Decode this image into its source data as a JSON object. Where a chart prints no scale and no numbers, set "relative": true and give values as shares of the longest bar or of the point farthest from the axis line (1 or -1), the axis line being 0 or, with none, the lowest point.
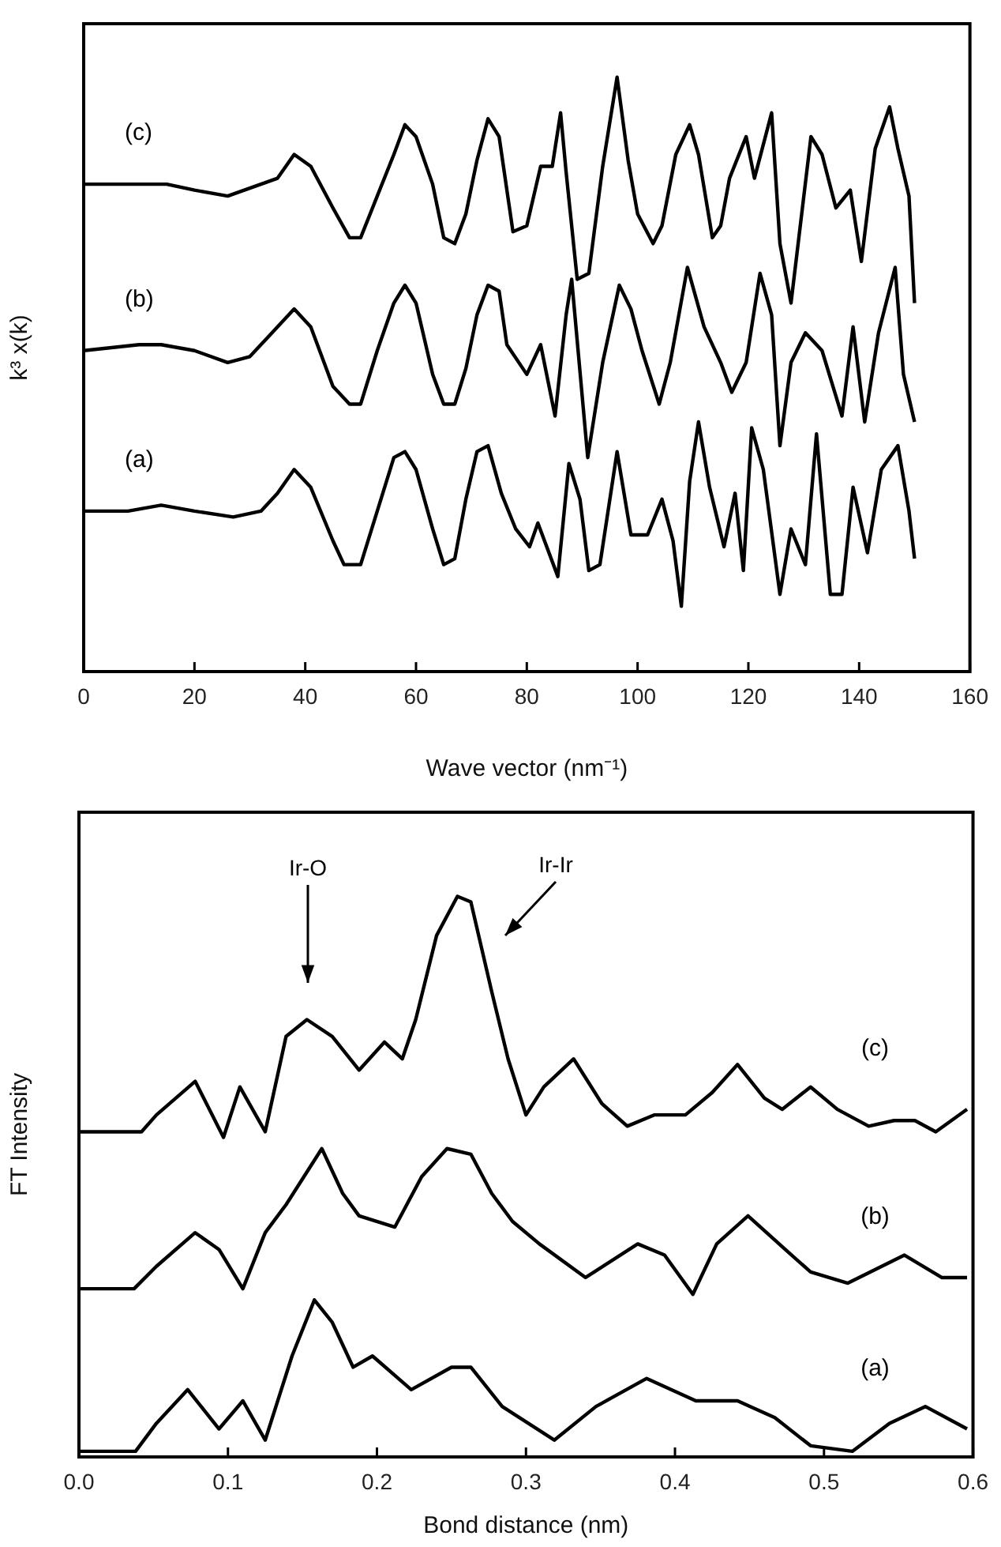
{
  "chart_data": [
    {
      "type": "line",
      "xlabel": "Wave vector (nm⁻¹)",
      "ylabel": "k³ x(k)",
      "relative": true,
      "xlim": [
        0,
        160
      ],
      "xticks": [
        0,
        20,
        40,
        60,
        80,
        100,
        120,
        140,
        160
      ],
      "tick_labels": "x",
      "series": [
        {
          "name": "(c)",
          "color": "#000000",
          "x": [
            0,
            10,
            15,
            20,
            26,
            32,
            35,
            38,
            41,
            45,
            48,
            50,
            53,
            56,
            58,
            60,
            63,
            65,
            67,
            69,
            71,
            73,
            75,
            77.5,
            80,
            82.5,
            84.6,
            86.1,
            87.1,
            89.1,
            91.2,
            93.7,
            96.3,
            98.3,
            100,
            102.8,
            104.4,
            106.9,
            109.4,
            111,
            113.5,
            115,
            116.6,
            119.6,
            121.1,
            124.2,
            125.7,
            127.7,
            131.3,
            133.3,
            135.8,
            138.4,
            140.4,
            142.9,
            145.5,
            147,
            149,
            150
          ],
          "values": [
            0.82,
            0.82,
            0.82,
            0.81,
            0.8,
            0.82,
            0.83,
            0.87,
            0.85,
            0.78,
            0.73,
            0.73,
            0.8,
            0.87,
            0.92,
            0.9,
            0.82,
            0.73,
            0.72,
            0.77,
            0.86,
            0.93,
            0.9,
            0.74,
            0.75,
            0.85,
            0.85,
            0.94,
            0.84,
            0.66,
            0.67,
            0.85,
            1,
            0.86,
            0.77,
            0.72,
            0.75,
            0.87,
            0.92,
            0.87,
            0.73,
            0.75,
            0.83,
            0.9,
            0.83,
            0.94,
            0.72,
            0.62,
            0.9,
            0.87,
            0.78,
            0.81,
            0.69,
            0.88,
            0.95,
            0.88,
            0.8,
            0.62
          ]
        },
        {
          "name": "(b)",
          "color": "#000000",
          "x": [
            0,
            10,
            14,
            20,
            26,
            30,
            34,
            38,
            41,
            45,
            48,
            50,
            53,
            56,
            58,
            60,
            63,
            65,
            67,
            69,
            71,
            73,
            75,
            76.4,
            80,
            82.5,
            85.1,
            87.1,
            88.1,
            91,
            93.7,
            96.7,
            98.8,
            100.8,
            103.9,
            105.9,
            109,
            112,
            115,
            117,
            119.6,
            122.1,
            124.2,
            125.7,
            127.7,
            130.3,
            133.3,
            136.9,
            138.9,
            141,
            143.5,
            146.5,
            148,
            150
          ],
          "values": [
            0.54,
            0.55,
            0.55,
            0.54,
            0.52,
            0.53,
            0.57,
            0.61,
            0.58,
            0.48,
            0.45,
            0.45,
            0.54,
            0.62,
            0.65,
            0.62,
            0.5,
            0.45,
            0.45,
            0.51,
            0.6,
            0.65,
            0.64,
            0.55,
            0.5,
            0.55,
            0.43,
            0.6,
            0.66,
            0.36,
            0.52,
            0.65,
            0.61,
            0.54,
            0.45,
            0.52,
            0.68,
            0.58,
            0.52,
            0.47,
            0.52,
            0.67,
            0.6,
            0.38,
            0.52,
            0.57,
            0.54,
            0.43,
            0.58,
            0.42,
            0.57,
            0.68,
            0.5,
            0.42
          ]
        },
        {
          "name": "(a)",
          "color": "#000000",
          "x": [
            0,
            8,
            14,
            20,
            27,
            32,
            35,
            38,
            41,
            45,
            47,
            50,
            53,
            56,
            58,
            60,
            63,
            65,
            67,
            69,
            71,
            73,
            75.4,
            78,
            80.5,
            82,
            85.6,
            87.6,
            89.6,
            91.2,
            93.2,
            96.3,
            98.8,
            101.8,
            104.4,
            106.4,
            107.9,
            109.4,
            111,
            113,
            115.6,
            117.6,
            119.1,
            120.6,
            122.7,
            125.7,
            127.7,
            130.3,
            132.3,
            134.8,
            136.9,
            138.9,
            141.5,
            144,
            147,
            149,
            150
          ],
          "values": [
            0.27,
            0.27,
            0.28,
            0.27,
            0.26,
            0.27,
            0.3,
            0.34,
            0.31,
            0.22,
            0.18,
            0.18,
            0.27,
            0.36,
            0.37,
            0.34,
            0.24,
            0.18,
            0.19,
            0.29,
            0.37,
            0.38,
            0.3,
            0.24,
            0.21,
            0.25,
            0.16,
            0.35,
            0.29,
            0.17,
            0.18,
            0.37,
            0.23,
            0.23,
            0.29,
            0.22,
            0.11,
            0.32,
            0.42,
            0.31,
            0.21,
            0.3,
            0.17,
            0.41,
            0.34,
            0.13,
            0.24,
            0.18,
            0.4,
            0.13,
            0.13,
            0.31,
            0.2,
            0.34,
            0.38,
            0.27,
            0.19
          ]
        }
      ]
    },
    {
      "type": "line",
      "xlabel": "Bond distance (nm)",
      "ylabel": "FT Intensity",
      "relative": true,
      "xlim": [
        0,
        0.6
      ],
      "xticks": [
        {
          "value": 0,
          "label": "0.0"
        },
        0.1,
        0.2,
        0.3,
        0.4,
        0.5,
        0.6
      ],
      "tick_labels": "x",
      "annotations": [
        "Ir-O",
        "Ir-Ir"
      ],
      "series": [
        {
          "name": "(c)",
          "color": "#000000",
          "x": [
            0,
            0.042,
            0.052,
            0.078,
            0.097,
            0.108,
            0.125,
            0.139,
            0.153,
            0.17,
            0.188,
            0.205,
            0.217,
            0.226,
            0.24,
            0.254,
            0.263,
            0.277,
            0.288,
            0.3,
            0.312,
            0.332,
            0.351,
            0.368,
            0.386,
            0.407,
            0.425,
            0.442,
            0.46,
            0.472,
            0.491,
            0.509,
            0.53,
            0.547,
            0.561,
            0.575,
            0.596
          ],
          "values": [
            0.58,
            0.58,
            0.61,
            0.67,
            0.57,
            0.66,
            0.58,
            0.75,
            0.78,
            0.75,
            0.69,
            0.74,
            0.71,
            0.78,
            0.93,
            1,
            0.99,
            0.83,
            0.71,
            0.61,
            0.66,
            0.71,
            0.63,
            0.59,
            0.61,
            0.61,
            0.65,
            0.7,
            0.64,
            0.62,
            0.66,
            0.62,
            0.59,
            0.6,
            0.6,
            0.58,
            0.62
          ]
        },
        {
          "name": "(b)",
          "color": "#000000",
          "x": [
            0,
            0.037,
            0.052,
            0.078,
            0.094,
            0.11,
            0.125,
            0.139,
            0.163,
            0.177,
            0.188,
            0.212,
            0.23,
            0.247,
            0.263,
            0.277,
            0.291,
            0.309,
            0.34,
            0.375,
            0.393,
            0.412,
            0.428,
            0.449,
            0.474,
            0.491,
            0.516,
            0.554,
            0.579,
            0.596
          ],
          "values": [
            0.3,
            0.3,
            0.34,
            0.4,
            0.37,
            0.3,
            0.4,
            0.45,
            0.55,
            0.47,
            0.43,
            0.41,
            0.5,
            0.55,
            0.54,
            0.47,
            0.42,
            0.38,
            0.32,
            0.38,
            0.36,
            0.29,
            0.38,
            0.43,
            0.37,
            0.33,
            0.31,
            0.36,
            0.32,
            0.32
          ]
        },
        {
          "name": "(a)",
          "color": "#000000",
          "x": [
            0,
            0.031,
            0.038,
            0.052,
            0.073,
            0.094,
            0.11,
            0.125,
            0.143,
            0.158,
            0.17,
            0.184,
            0.197,
            0.223,
            0.25,
            0.263,
            0.284,
            0.319,
            0.347,
            0.381,
            0.414,
            0.442,
            0.467,
            0.491,
            0.519,
            0.544,
            0.568,
            0.596
          ],
          "values": [
            0.01,
            0.01,
            0.01,
            0.06,
            0.12,
            0.05,
            0.1,
            0.03,
            0.18,
            0.28,
            0.24,
            0.16,
            0.18,
            0.12,
            0.16,
            0.16,
            0.09,
            0.03,
            0.09,
            0.14,
            0.1,
            0.1,
            0.07,
            0.02,
            0.01,
            0.06,
            0.09,
            0.05
          ]
        }
      ]
    }
  ]
}
